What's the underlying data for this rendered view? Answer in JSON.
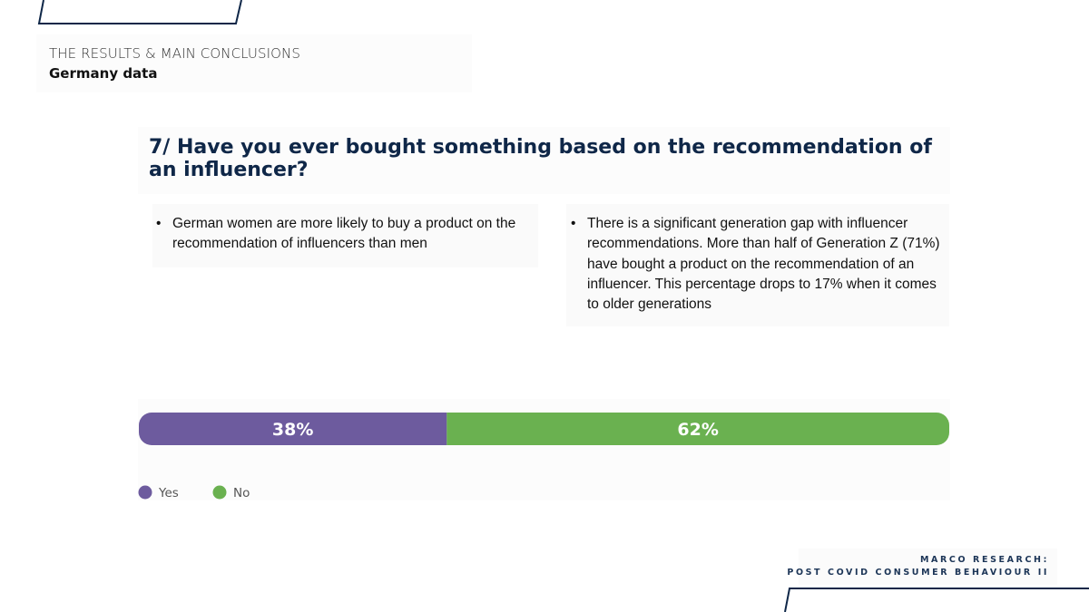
{
  "header": {
    "title": "THE RESULTS & MAIN CONCLUSIONS",
    "subtitle": "Germany data"
  },
  "question": "7/ Have you ever bought something based on the recommendation of an influencer?",
  "notes": {
    "left": "German women are more likely to buy a product on the recommendation of influencers than men",
    "right": "There is a significant generation gap with influencer recommendations. More than half of Generation Z (71%) have bought a product on the recommendation of an influencer. This percentage drops to 17% when it comes to older generations"
  },
  "footer": {
    "line1": "MARCO RESEARCH:",
    "line2": "POST COVID CONSUMER BEHAVIOUR II"
  },
  "colors": {
    "yes": "#6d5b9e",
    "no": "#6ab150",
    "accent": "#1c3557"
  },
  "chart_data": {
    "type": "bar",
    "orientation": "horizontal",
    "stacked": true,
    "normalized_percent": true,
    "categories": [
      ""
    ],
    "series": [
      {
        "name": "Yes",
        "values": [
          38
        ],
        "label": "38%",
        "color": "#6d5b9e"
      },
      {
        "name": "No",
        "values": [
          62
        ],
        "label": "62%",
        "color": "#6ab150"
      }
    ],
    "xlim": [
      0,
      100
    ],
    "grid": false,
    "legend": "bottom-left"
  }
}
